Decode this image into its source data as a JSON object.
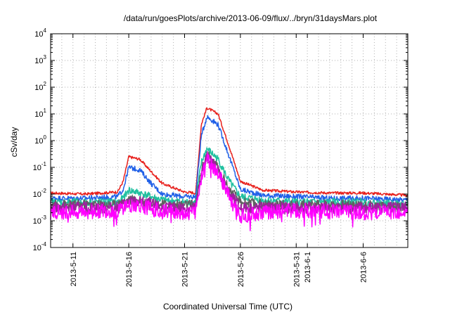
{
  "chart_data": {
    "type": "line",
    "title": "/data/run/goesPlots/archive/2013-06-09/flux/../bryn/31daysMars.plot",
    "xlabel": "Coordinated Universal Time (UTC)",
    "ylabel": "cSv/day",
    "yscale": "log",
    "ylim": [
      0.0001,
      10000
    ],
    "xlim": [
      "2013-05-09",
      "2013-06-10"
    ],
    "grid": true,
    "legend": "none",
    "ytick_labels": [
      {
        "base": "10",
        "exp": "-4"
      },
      {
        "base": "10",
        "exp": "-3"
      },
      {
        "base": "10",
        "exp": "-2"
      },
      {
        "base": "10",
        "exp": "-1"
      },
      {
        "base": "10",
        "exp": "0"
      },
      {
        "base": "10",
        "exp": "1"
      },
      {
        "base": "10",
        "exp": "2"
      },
      {
        "base": "10",
        "exp": "3"
      },
      {
        "base": "10",
        "exp": "4"
      }
    ],
    "xtick_labels": [
      "2013-5-11",
      "2013-5-16",
      "2013-5-21",
      "2013-5-26",
      "2013-5-31",
      "2013-6-1",
      "2013-6-6"
    ],
    "xtick_dates": [
      "2013-05-11",
      "2013-05-16",
      "2013-05-21",
      "2013-05-26",
      "2013-05-31",
      "2013-06-01",
      "2013-06-06"
    ],
    "x": [
      "2013-05-09",
      "2013-05-12",
      "2013-05-15",
      "2013-05-15 12:00",
      "2013-05-16",
      "2013-05-17",
      "2013-05-18",
      "2013-05-19",
      "2013-05-21",
      "2013-05-22",
      "2013-05-22 12:00",
      "2013-05-23",
      "2013-05-24",
      "2013-05-25",
      "2013-05-26",
      "2013-05-28",
      "2013-05-31",
      "2013-06-03",
      "2013-06-06",
      "2013-06-10"
    ],
    "series": [
      {
        "color": "#e8201c",
        "values": [
          0.011,
          0.01,
          0.012,
          0.03,
          0.25,
          0.2,
          0.07,
          0.025,
          0.012,
          0.011,
          4,
          17,
          10,
          0.6,
          0.03,
          0.014,
          0.012,
          0.011,
          0.011,
          0.009
        ]
      },
      {
        "color": "#2060e8",
        "values": [
          0.007,
          0.007,
          0.008,
          0.015,
          0.1,
          0.08,
          0.025,
          0.01,
          0.008,
          0.008,
          1.5,
          8,
          4,
          0.25,
          0.015,
          0.009,
          0.008,
          0.007,
          0.007,
          0.006
        ]
      },
      {
        "color": "#20c0a0",
        "values": [
          0.005,
          0.005,
          0.005,
          0.007,
          0.014,
          0.011,
          0.008,
          0.006,
          0.005,
          0.005,
          0.15,
          0.5,
          0.2,
          0.03,
          0.008,
          0.006,
          0.005,
          0.005,
          0.005,
          0.004
        ]
      },
      {
        "color": "#606060",
        "values": [
          0.004,
          0.004,
          0.004,
          0.005,
          0.006,
          0.006,
          0.005,
          0.004,
          0.004,
          0.004,
          0.08,
          0.3,
          0.1,
          0.015,
          0.005,
          0.004,
          0.004,
          0.004,
          0.004,
          0.003
        ]
      },
      {
        "color": "#a020a0",
        "values": [
          0.003,
          0.003,
          0.003,
          0.004,
          0.005,
          0.005,
          0.004,
          0.003,
          0.003,
          0.003,
          0.06,
          0.25,
          0.08,
          0.01,
          0.003,
          0.003,
          0.003,
          0.003,
          0.003,
          0.003
        ]
      },
      {
        "color": "#ff00ff",
        "values": [
          0.002,
          0.0022,
          0.0022,
          0.003,
          0.004,
          0.0035,
          0.003,
          0.0022,
          0.002,
          0.002,
          0.05,
          0.2,
          0.06,
          0.008,
          0.0015,
          0.002,
          0.0025,
          0.0022,
          0.002,
          0.002
        ]
      }
    ]
  }
}
